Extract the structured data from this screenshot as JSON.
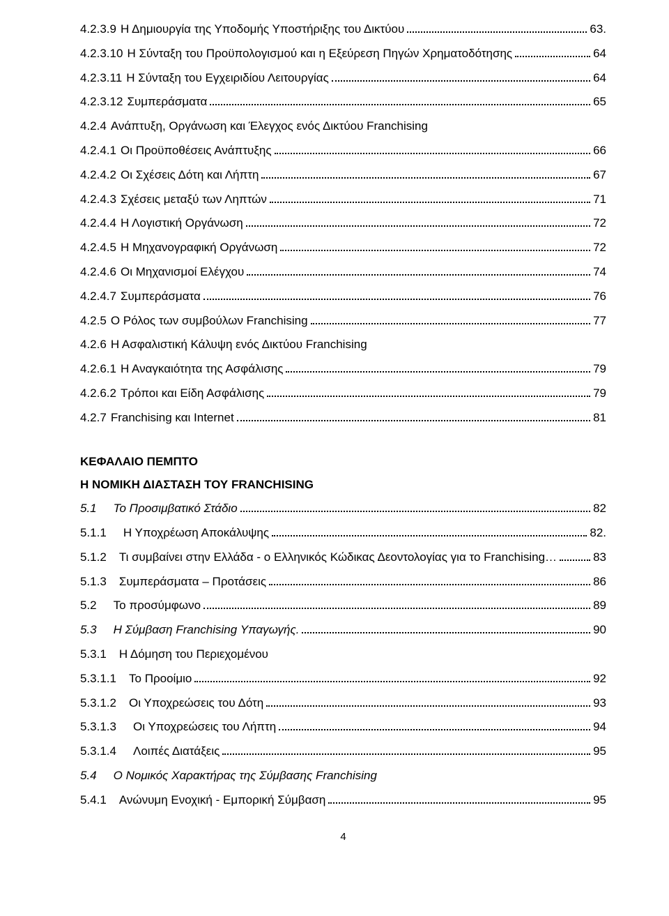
{
  "colors": {
    "text": "#000000",
    "background": "#ffffff"
  },
  "typography": {
    "font_family": "Arial",
    "body_size_pt": 12
  },
  "toc": [
    {
      "num": "4.2.3.9",
      "title": "Η Δημιουργία της Υποδομής Υποστήριξης του Δικτύου",
      "page": "63."
    },
    {
      "num": "4.2.3.10",
      "title": "Η Σύνταξη του Προϋπολογισμού και η Εξεύρεση Πηγών Χρηματοδότησης",
      "page": "64"
    },
    {
      "num": "4.2.3.11",
      "title": "Η Σύνταξη του Εγχειριδίου Λειτουργίας",
      "page": "64"
    },
    {
      "num": "4.2.3.12",
      "title": "Συμπεράσματα",
      "page": "65"
    },
    {
      "num": "4.2.4",
      "title": "Ανάπτυξη, Οργάνωση και Έλεγχος ενός Δικτύου Franchising",
      "no_page": true
    },
    {
      "num": "4.2.4.1",
      "title": "Οι Προϋποθέσεις Ανάπτυξης",
      "page": "66"
    },
    {
      "num": "4.2.4.2",
      "title": "Οι Σχέσεις Δότη και Λήπτη",
      "page": "67"
    },
    {
      "num": "4.2.4.3",
      "title": "Σχέσεις μεταξύ των Ληπτών",
      "page": "71"
    },
    {
      "num": "4.2.4.4",
      "title": "Η Λογιστική Οργάνωση",
      "page": "72"
    },
    {
      "num": "4.2.4.5",
      "title": "Η Μηχανογραφική Οργάνωση",
      "page": "72"
    },
    {
      "num": "4.2.4.6",
      "title": "Οι Μηχανισμοί Ελέγχου",
      "page": "74"
    },
    {
      "num": "4.2.4.7",
      "title": "Συμπεράσματα",
      "page": "76"
    },
    {
      "num": "4.2.5",
      "title": "Ο Ρόλος των συμβούλων  Franchising",
      "page": "77"
    },
    {
      "num": "4.2.6",
      "title": "Η Ασφαλιστική Κάλυψη ενός Δικτύου Franchising",
      "no_page": true
    },
    {
      "num": "4.2.6.1",
      "title": "Η Αναγκαιότητα της Ασφάλισης",
      "page": "79"
    },
    {
      "num": "4.2.6.2",
      "title": "Τρόποι και Είδη Ασφάλισης",
      "page": "79"
    },
    {
      "num": "4.2.7",
      "title": "Franchising και Internet",
      "page": "81"
    }
  ],
  "chapter5": {
    "heading": "ΚΕΦΑΛΑΙΟ ΠΕΜΠΤΟ",
    "subheading": "Η ΝΟΜΙΚΗ ΔΙΑΣΤΑΣΗ ΤΟΥ FRANCHISING",
    "lines": [
      {
        "num": "5.1",
        "title": "Το Προσιμβατικό Στάδιο",
        "page": "82",
        "italic": true,
        "numpad": "wider"
      },
      {
        "num": "5.1.1",
        "title": "Η Υποχρέωση Αποκάλυψης",
        "page": "82.",
        "numpad": "wider"
      },
      {
        "num": "5.1.2",
        "title": "Τι συμβαίνει στην Ελλάδα - ο Ελληνικός Κώδικας Δεοντολογίας για το Franchising",
        "page": "83",
        "numpad": "wide",
        "dots_prefix": "…"
      },
      {
        "num": "5.1.3",
        "title": "Συμπεράσματα – Προτάσεις",
        "page": "86",
        "numpad": "wide"
      },
      {
        "num": "5.2",
        "title": "Το προσύμφωνο",
        "page": "89",
        "numpad": "wider"
      },
      {
        "num": "5.3",
        "title": "Η Σύμβαση Franchising Υπαγωγής.",
        "page": "90",
        "italic": true,
        "numpad": "wider"
      },
      {
        "num": "5.3.1",
        "title": "Η Δόμηση του Περιεχομένου",
        "no_page": true,
        "numpad": "wide"
      },
      {
        "num": "5.3.1.1",
        "title": "Το Προοίμιο",
        "page": "92",
        "numpad": "wide"
      },
      {
        "num": "5.3.1.2",
        "title": "Οι Υποχρεώσεις του Δότη",
        "page": "93",
        "numpad": "wide"
      },
      {
        "num": "5.3.1.3",
        "title": "Οι Υποχρεώσεις του Λήπτη",
        "page": "94",
        "numpad": "wider"
      },
      {
        "num": "5.3.1.4",
        "title": "Λοιπές Διατάξεις",
        "page": "95",
        "numpad": "wider"
      },
      {
        "num": "5.4",
        "title": "Ο Νομικός Χαρακτήρας της Σύμβασης Franchising",
        "no_page": true,
        "italic": true,
        "numpad": "wider"
      },
      {
        "num": "5.4.1",
        "title": "Ανώνυμη Ενοχική - Εμπορική Σύμβαση",
        "page": "95",
        "numpad": "wide"
      }
    ]
  },
  "footer_page": "4"
}
